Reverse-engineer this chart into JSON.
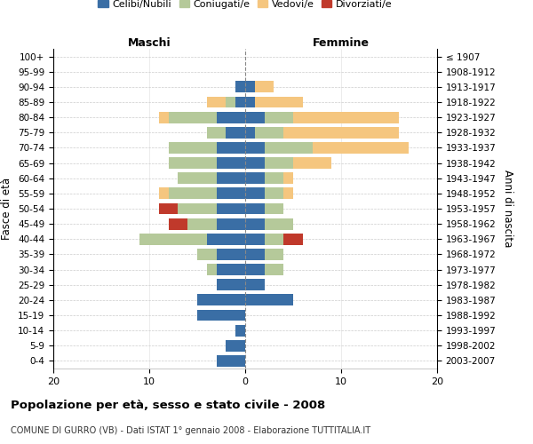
{
  "age_groups": [
    "0-4",
    "5-9",
    "10-14",
    "15-19",
    "20-24",
    "25-29",
    "30-34",
    "35-39",
    "40-44",
    "45-49",
    "50-54",
    "55-59",
    "60-64",
    "65-69",
    "70-74",
    "75-79",
    "80-84",
    "85-89",
    "90-94",
    "95-99",
    "100+"
  ],
  "birth_years": [
    "2003-2007",
    "1998-2002",
    "1993-1997",
    "1988-1992",
    "1983-1987",
    "1978-1982",
    "1973-1977",
    "1968-1972",
    "1963-1967",
    "1958-1962",
    "1953-1957",
    "1948-1952",
    "1943-1947",
    "1938-1942",
    "1933-1937",
    "1928-1932",
    "1923-1927",
    "1918-1922",
    "1913-1917",
    "1908-1912",
    "≤ 1907"
  ],
  "males": {
    "celibi": [
      3,
      2,
      1,
      5,
      5,
      3,
      3,
      3,
      4,
      3,
      3,
      3,
      3,
      3,
      3,
      2,
      3,
      1,
      1,
      0,
      0
    ],
    "coniugati": [
      0,
      0,
      0,
      0,
      0,
      0,
      1,
      2,
      7,
      3,
      4,
      5,
      4,
      5,
      5,
      2,
      5,
      1,
      0,
      0,
      0
    ],
    "vedovi": [
      0,
      0,
      0,
      0,
      0,
      0,
      0,
      0,
      0,
      0,
      0,
      1,
      0,
      0,
      0,
      0,
      1,
      2,
      0,
      0,
      0
    ],
    "divorziati": [
      0,
      0,
      0,
      0,
      0,
      0,
      0,
      0,
      0,
      2,
      2,
      0,
      0,
      0,
      0,
      0,
      0,
      0,
      0,
      0,
      0
    ]
  },
  "females": {
    "nubili": [
      0,
      0,
      0,
      0,
      5,
      2,
      2,
      2,
      2,
      2,
      2,
      2,
      2,
      2,
      2,
      1,
      2,
      1,
      1,
      0,
      0
    ],
    "coniugate": [
      0,
      0,
      0,
      0,
      0,
      0,
      2,
      2,
      2,
      3,
      2,
      2,
      2,
      3,
      5,
      3,
      3,
      0,
      0,
      0,
      0
    ],
    "vedove": [
      0,
      0,
      0,
      0,
      0,
      0,
      0,
      0,
      0,
      0,
      0,
      1,
      1,
      4,
      10,
      12,
      11,
      5,
      2,
      0,
      0
    ],
    "divorziate": [
      0,
      0,
      0,
      0,
      0,
      0,
      0,
      0,
      2,
      0,
      0,
      0,
      0,
      0,
      0,
      0,
      0,
      0,
      0,
      0,
      0
    ]
  },
  "colors": {
    "celibi": "#3a6ea5",
    "coniugati": "#b5c99a",
    "vedovi": "#f5c67f",
    "divorziati": "#c0392b"
  },
  "xlim": [
    -20,
    20
  ],
  "xticks": [
    -20,
    -10,
    0,
    10,
    20
  ],
  "xticklabels": [
    "20",
    "10",
    "0",
    "10",
    "20"
  ],
  "title": "Popolazione per età, sesso e stato civile - 2008",
  "subtitle": "COMUNE DI GURRO (VB) - Dati ISTAT 1° gennaio 2008 - Elaborazione TUTTITALIA.IT",
  "ylabel_left": "Fasce di età",
  "ylabel_right": "Anni di nascita",
  "maschi_label": "Maschi",
  "femmine_label": "Femmine",
  "legend_labels": [
    "Celibi/Nubili",
    "Coniugati/e",
    "Vedovi/e",
    "Divorziati/e"
  ],
  "background_color": "#ffffff",
  "bar_height": 0.75
}
